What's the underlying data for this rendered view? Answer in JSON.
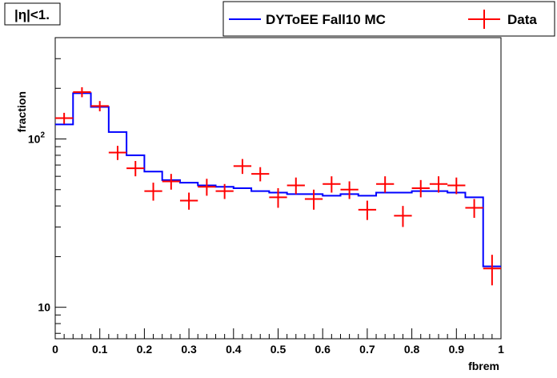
{
  "label_box": {
    "text": "|η|<1."
  },
  "chart_data": {
    "type": "line",
    "xlabel": "fbrem",
    "ylabel": "fraction",
    "xlim": [
      0,
      1
    ],
    "ylim": [
      6.5,
      400
    ],
    "yscale": "log",
    "grid": false,
    "legend_position": "top-right",
    "x_ticks": [
      "0",
      "0.1",
      "0.2",
      "0.3",
      "0.4",
      "0.5",
      "0.6",
      "0.7",
      "0.8",
      "0.9",
      "1"
    ],
    "y_ticks": [
      {
        "value": 10,
        "label": "10"
      },
      {
        "value": 100,
        "label": "10",
        "sup": "2"
      }
    ],
    "series": [
      {
        "name": "DYToEE Fall10 MC",
        "kind": "histogram",
        "color": "#0000ff",
        "bin_edges": [
          0,
          0.04,
          0.08,
          0.12,
          0.16,
          0.2,
          0.24,
          0.28,
          0.32,
          0.36,
          0.4,
          0.44,
          0.48,
          0.52,
          0.56,
          0.6,
          0.64,
          0.68,
          0.72,
          0.76,
          0.8,
          0.84,
          0.88,
          0.92,
          0.96,
          1.0
        ],
        "values": [
          122,
          187,
          155,
          110,
          80,
          64,
          57,
          55,
          53,
          52,
          51,
          49,
          48,
          47,
          47,
          46,
          47,
          46,
          48,
          48,
          49,
          49,
          48,
          45,
          17.5
        ]
      },
      {
        "name": "Data",
        "kind": "points",
        "color": "#ff0000",
        "x": [
          0.02,
          0.06,
          0.1,
          0.14,
          0.18,
          0.22,
          0.26,
          0.3,
          0.34,
          0.38,
          0.42,
          0.46,
          0.5,
          0.54,
          0.58,
          0.62,
          0.66,
          0.7,
          0.74,
          0.78,
          0.82,
          0.86,
          0.9,
          0.94,
          0.98
        ],
        "y": [
          133,
          190,
          157,
          83,
          67,
          49,
          56,
          43,
          52,
          49,
          69,
          62,
          45,
          53,
          44,
          54,
          50,
          38,
          54,
          35,
          51,
          54,
          53,
          39,
          17
        ],
        "err_low": [
          10,
          13,
          11,
          8,
          7,
          6,
          6,
          5,
          6,
          5,
          7,
          6,
          6,
          6,
          6,
          6,
          6,
          5,
          6,
          5,
          6,
          6,
          6,
          5,
          3.5
        ],
        "err_high": [
          10,
          13,
          11,
          8,
          7,
          6,
          6,
          5,
          6,
          5,
          7,
          6,
          6,
          6,
          6,
          6,
          6,
          5,
          6,
          5,
          6,
          6,
          6,
          5,
          3.5
        ]
      }
    ]
  }
}
